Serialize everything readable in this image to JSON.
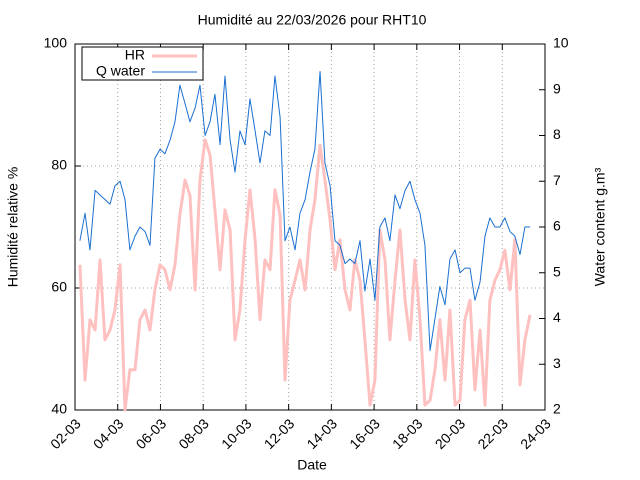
{
  "chart_data": {
    "type": "line",
    "title": "Humidité au 22/03/2026 pour RHT10",
    "x_label": "Date",
    "y_label": "Humidité relative %",
    "y2_label": "Water content g.m³",
    "grid": true,
    "legend": "upper left",
    "xlim": [
      2,
      24
    ],
    "xticks": [
      {
        "value": 2,
        "label": "02-03"
      },
      {
        "value": 4,
        "label": "04-03"
      },
      {
        "value": 6,
        "label": "06-03"
      },
      {
        "value": 8,
        "label": "08-03"
      },
      {
        "value": 10,
        "label": "10-03"
      },
      {
        "value": 12,
        "label": "12-03"
      },
      {
        "value": 14,
        "label": "14-03"
      },
      {
        "value": 16,
        "label": "16-03"
      },
      {
        "value": 18,
        "label": "18-03"
      },
      {
        "value": 20,
        "label": "20-03"
      },
      {
        "value": 22,
        "label": "22-03"
      },
      {
        "value": 24,
        "label": "24-03"
      }
    ],
    "ylim": [
      40,
      100
    ],
    "yticks": [
      40,
      60,
      80,
      100
    ],
    "y2lim": [
      2,
      10
    ],
    "y2ticks": [
      2,
      3,
      4,
      5,
      6,
      7,
      8,
      9,
      10
    ],
    "x": [
      2.23,
      2.47,
      2.7,
      2.94,
      3.17,
      3.4,
      3.64,
      3.87,
      4.11,
      4.34,
      4.57,
      4.81,
      5.04,
      5.28,
      5.51,
      5.74,
      5.98,
      6.21,
      6.45,
      6.68,
      6.91,
      7.15,
      7.38,
      7.62,
      7.85,
      8.09,
      8.32,
      8.55,
      8.79,
      9.02,
      9.26,
      9.49,
      9.72,
      9.96,
      10.19,
      10.43,
      10.66,
      10.89,
      11.13,
      11.36,
      11.6,
      11.83,
      12.06,
      12.3,
      12.53,
      12.77,
      13.0,
      13.23,
      13.47,
      13.7,
      13.94,
      14.17,
      14.4,
      14.64,
      14.87,
      15.1,
      15.34,
      15.57,
      15.81,
      16.04,
      16.27,
      16.51,
      16.74,
      16.98,
      17.21,
      17.45,
      17.68,
      17.91,
      18.15,
      18.38,
      18.62,
      18.85,
      19.08,
      19.32,
      19.55,
      19.79,
      20.02,
      20.25,
      20.49,
      20.72,
      20.96,
      21.19,
      21.42,
      21.66,
      21.89,
      22.12,
      22.36,
      22.59,
      22.83,
      23.06,
      23.3
    ],
    "series": [
      {
        "name": "HR",
        "color": "#ffc0c0",
        "values": [
          63.8,
          44.9,
          54.8,
          53.1,
          64.6,
          51.5,
          53.1,
          56.4,
          63.8,
          40,
          46.6,
          46.6,
          54.8,
          56.4,
          53.1,
          59.7,
          63.8,
          63.0,
          59.7,
          63.8,
          72.0,
          77.7,
          75.2,
          59.7,
          77.7,
          84.3,
          81.8,
          72.8,
          63.0,
          72.8,
          69.5,
          51.5,
          56.4,
          67.9,
          76.1,
          67.9,
          54.8,
          64.6,
          63.0,
          76.1,
          72.0,
          44.9,
          58.0,
          61.3,
          64.6,
          59.7,
          69.5,
          74.4,
          83.4,
          77.7,
          71.1,
          63.0,
          67.9,
          59.7,
          56.4,
          64.6,
          61.3,
          51.5,
          40.8,
          44.9,
          69.5,
          64.6,
          51.5,
          61.3,
          69.5,
          58.0,
          51.5,
          64.6,
          54.8,
          40.8,
          41.6,
          46.6,
          54.8,
          44.9,
          56.4,
          40.8,
          41.6,
          54.8,
          58.0,
          43.3,
          53.1,
          40.8,
          58.0,
          61.3,
          63.0,
          66.2,
          59.7,
          67.9,
          44.1,
          51.5,
          55.6
        ]
      },
      {
        "name": "Q water",
        "color": "#1a6fd1",
        "axis": "y2",
        "values": [
          5.7,
          6.3,
          5.5,
          6.8,
          6.7,
          6.6,
          6.5,
          6.9,
          7.0,
          6.6,
          5.5,
          5.8,
          6.0,
          5.9,
          5.6,
          7.5,
          7.7,
          7.6,
          7.9,
          8.3,
          9.1,
          8.7,
          8.3,
          8.6,
          9.1,
          8.0,
          8.3,
          8.9,
          7.8,
          9.3,
          7.9,
          7.2,
          8.1,
          7.8,
          8.8,
          8.1,
          7.4,
          8.1,
          8.0,
          9.3,
          8.4,
          5.7,
          6.0,
          5.5,
          6.3,
          6.6,
          7.2,
          7.7,
          9.4,
          7.4,
          6.9,
          5.7,
          5.6,
          5.2,
          5.3,
          5.2,
          5.7,
          4.6,
          5.3,
          4.4,
          6.0,
          6.2,
          5.7,
          6.7,
          6.4,
          6.8,
          7.0,
          6.6,
          6.3,
          5.6,
          3.3,
          4.0,
          4.7,
          4.3,
          5.3,
          5.5,
          5.0,
          5.1,
          5.1,
          4.4,
          4.8,
          5.8,
          6.2,
          6.0,
          6.0,
          6.2,
          5.9,
          5.8,
          5.4,
          6.0,
          6.0
        ]
      }
    ]
  }
}
